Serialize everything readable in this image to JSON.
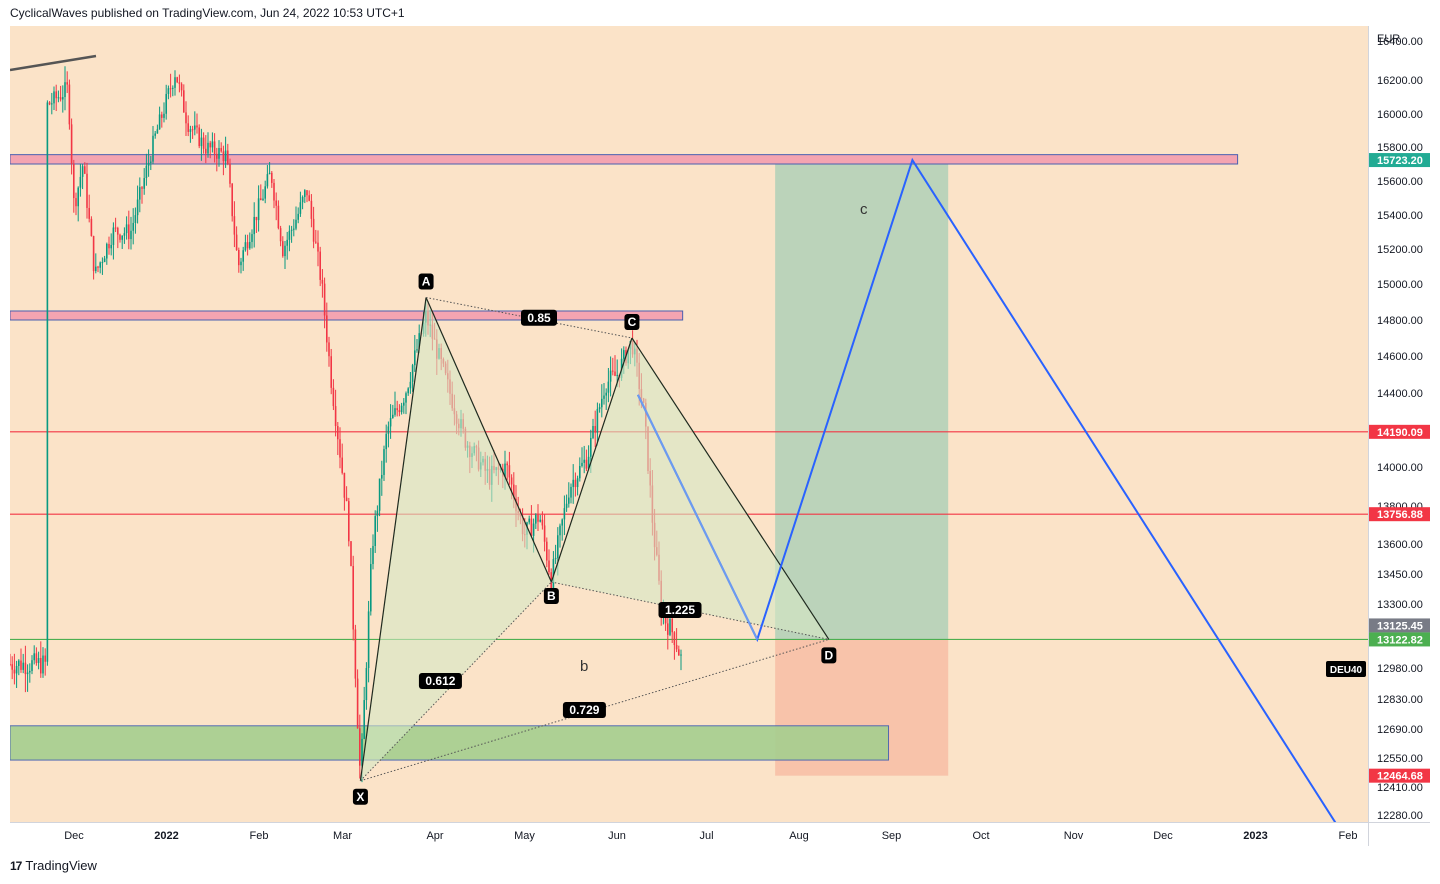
{
  "header": {
    "text": "CyclicalWaves published on TradingView.com, Jun 24, 2022 10:53 UTC+1"
  },
  "footer": {
    "logo_mark": "17",
    "brand": "TradingView"
  },
  "chart_data": {
    "type": "candlestick",
    "symbol": "DEU40",
    "currency": "EUR",
    "price_axis": {
      "ticks": [
        16400,
        16200,
        16000,
        15800,
        15600,
        15400,
        15200,
        15000,
        14800,
        14600,
        14400,
        14000,
        13800,
        13600,
        13450,
        13300,
        12980,
        12830,
        12690,
        12550,
        12410,
        12280
      ],
      "tick_labels": [
        "16400.00",
        "16200.00",
        "16000.00",
        "15800.00",
        "15600.00",
        "15400.00",
        "15200.00",
        "15000.00",
        "14800.00",
        "14600.00",
        "14400.00",
        "14000.00",
        "13800.00",
        "13600.00",
        "13450.00",
        "13300.00",
        "12980.00",
        "12830.00",
        "12690.00",
        "12550.00",
        "12410.00",
        "12280.00"
      ]
    },
    "time_axis": {
      "labels": [
        "Dec",
        "2022",
        "Feb",
        "Mar",
        "Apr",
        "May",
        "Jun",
        "Jul",
        "Aug",
        "Sep",
        "Oct",
        "Nov",
        "Dec",
        "2023",
        "Feb"
      ]
    },
    "price_markers": [
      {
        "value": "15723.20",
        "color": "#22ab94",
        "text_color": "#ffffff"
      },
      {
        "value": "14190.09",
        "color": "#f23645",
        "text_color": "#ffffff"
      },
      {
        "value": "13756.88",
        "color": "#f23645",
        "text_color": "#ffffff"
      },
      {
        "value": "13125.45",
        "color": "#787b86",
        "text_color": "#ffffff"
      },
      {
        "value": "13122.82",
        "color": "#4caf50",
        "text_color": "#ffffff"
      },
      {
        "value": "12464.68",
        "color": "#f23645",
        "text_color": "#ffffff"
      }
    ],
    "symbol_tag": "DEU40",
    "pattern": {
      "type": "harmonic XABCD",
      "points": [
        {
          "label": "X",
          "date": "2022-03-07",
          "price": 12440
        },
        {
          "label": "A",
          "date": "2022-03-29",
          "price": 14925
        },
        {
          "label": "B",
          "date": "2022-05-10",
          "price": 13410
        },
        {
          "label": "C",
          "date": "2022-06-06",
          "price": 14700
        },
        {
          "label": "D",
          "date": "2022-08-11",
          "price": 13123
        }
      ],
      "ratios": [
        "0.85",
        "0.612",
        "0.729",
        "1.225"
      ]
    },
    "wave_labels": [
      "b",
      "c"
    ],
    "annotations": [
      "X",
      "A",
      "B",
      "C",
      "D"
    ],
    "colors": {
      "background": "#fbe3c8",
      "bull_candle": "#089981",
      "bear_candle": "#f23645",
      "projection_line": "#2962ff",
      "pattern_fill": "#d5e8c4",
      "target_zone": "#b7d2b9",
      "stop_zone": "#f8c1a9",
      "support_zone": "#a5cf8f",
      "resistance_zone": "#f4a4b1"
    }
  }
}
